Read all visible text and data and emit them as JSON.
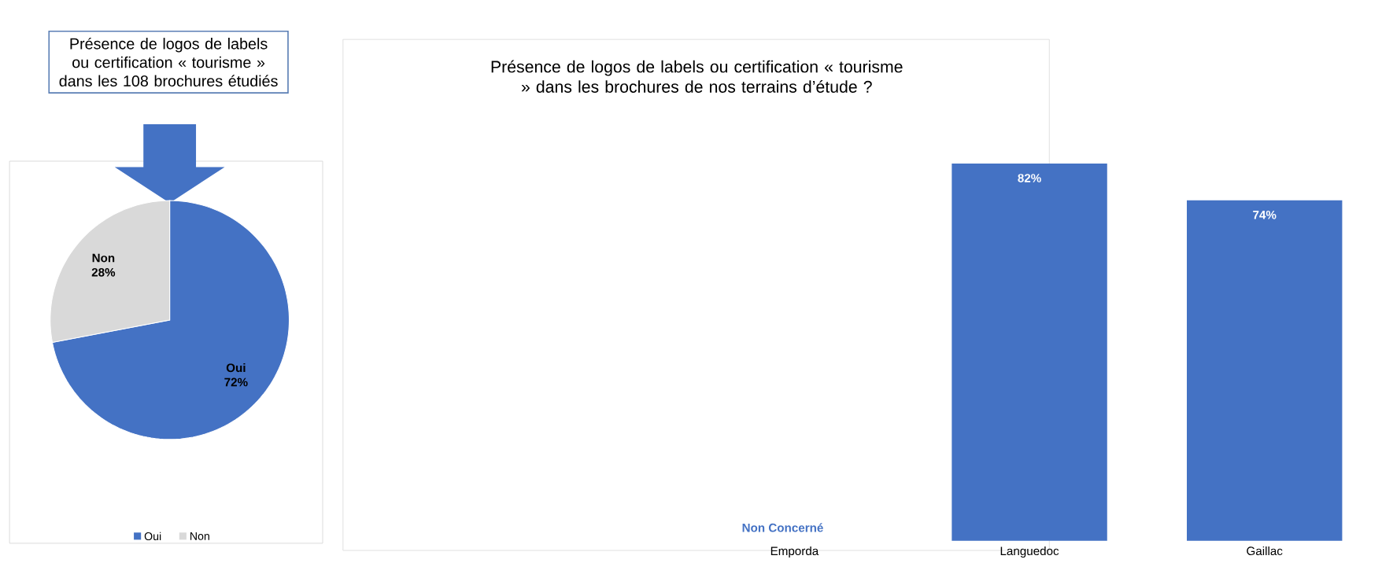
{
  "chart_data": [
    {
      "type": "pie",
      "title": "Présence de logos de labels ou certification « tourisme » dans les 108 brochures étudiés",
      "categories": [
        "Oui",
        "Non"
      ],
      "values": [
        72,
        28
      ],
      "colors": [
        "#4472c4",
        "#d9d9d9"
      ],
      "value_labels": [
        "72%",
        "28%"
      ],
      "legend": "bottom"
    },
    {
      "type": "bar",
      "title": "Présence de logos de labels ou certification « tourisme » dans les brochures de nos terrains d’étude ?",
      "categories": [
        "Emporda",
        "Languedoc",
        "Gaillac"
      ],
      "values": [
        null,
        82,
        74
      ],
      "color": "#4472c4",
      "value_labels": [
        null,
        "82%",
        "74%"
      ],
      "annotations": [
        "Non Concerné"
      ]
    }
  ]
}
